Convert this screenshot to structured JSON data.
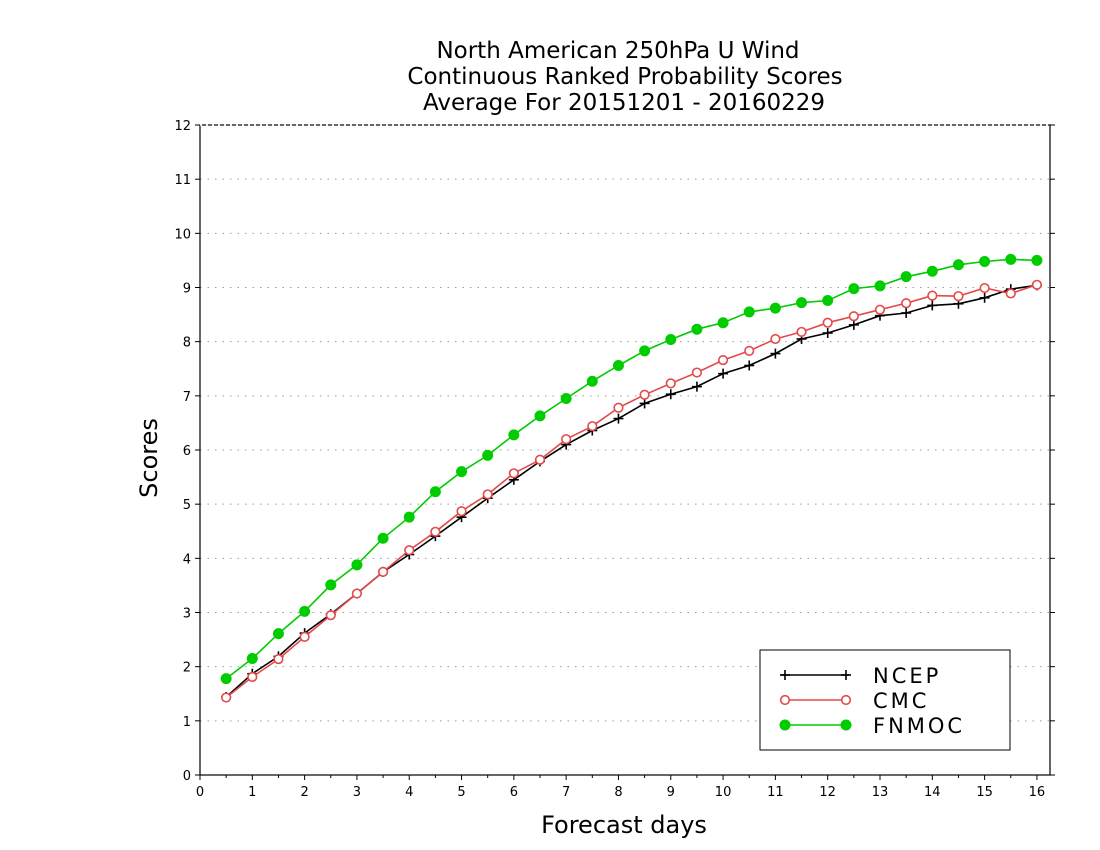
{
  "chart_data": {
    "type": "line",
    "title_lines": [
      "North American 250hPa U Wind",
      "Continuous Ranked Probability Scores",
      "Average For 20151201 - 20160229"
    ],
    "xlabel": "Forecast days",
    "ylabel": "Scores",
    "xlim": [
      0,
      16.25
    ],
    "ylim": [
      0,
      12
    ],
    "x_ticks": [
      "0",
      "1",
      "2",
      "3",
      "4",
      "5",
      "6",
      "7",
      "8",
      "9",
      "10",
      "11",
      "12",
      "13",
      "14",
      "15",
      "16"
    ],
    "y_ticks": [
      "0",
      "1",
      "2",
      "3",
      "4",
      "5",
      "6",
      "7",
      "8",
      "9",
      "10",
      "11",
      "12"
    ],
    "grid": "dotted horizontal",
    "legend_position": "bottom-right",
    "x": [
      0.5,
      1,
      1.5,
      2,
      2.5,
      3,
      3.5,
      4,
      4.5,
      5,
      5.5,
      6,
      6.5,
      7,
      7.5,
      8,
      8.5,
      9,
      9.5,
      10,
      10.5,
      11,
      11.5,
      12,
      12.5,
      13,
      13.5,
      14,
      14.5,
      15,
      15.5,
      16
    ],
    "series": [
      {
        "name": "NCEP",
        "color": "#000000",
        "marker": "plus",
        "values": [
          1.44,
          1.87,
          2.19,
          2.62,
          2.97,
          3.35,
          3.75,
          4.07,
          4.41,
          4.76,
          5.11,
          5.45,
          5.79,
          6.1,
          6.36,
          6.58,
          6.86,
          7.03,
          7.17,
          7.41,
          7.56,
          7.78,
          8.05,
          8.16,
          8.31,
          8.48,
          8.53,
          8.67,
          8.7,
          8.81,
          8.97,
          9.04
        ]
      },
      {
        "name": "CMC",
        "color": "#e34a4a",
        "marker": "open-circle",
        "values": [
          1.43,
          1.81,
          2.14,
          2.55,
          2.95,
          3.35,
          3.75,
          4.15,
          4.49,
          4.87,
          5.18,
          5.57,
          5.82,
          6.2,
          6.44,
          6.78,
          7.02,
          7.23,
          7.43,
          7.66,
          7.83,
          8.05,
          8.18,
          8.35,
          8.47,
          8.59,
          8.71,
          8.85,
          8.84,
          8.99,
          8.89,
          9.05
        ]
      },
      {
        "name": "FNMOC",
        "color": "#00cc00",
        "marker": "filled-circle",
        "values": [
          1.78,
          2.15,
          2.61,
          3.02,
          3.51,
          3.88,
          4.37,
          4.76,
          5.23,
          5.6,
          5.9,
          6.28,
          6.63,
          6.95,
          7.27,
          7.56,
          7.83,
          8.04,
          8.23,
          8.35,
          8.55,
          8.62,
          8.72,
          8.76,
          8.98,
          9.03,
          9.2,
          9.3,
          9.42,
          9.48,
          9.52,
          9.5
        ]
      }
    ]
  }
}
